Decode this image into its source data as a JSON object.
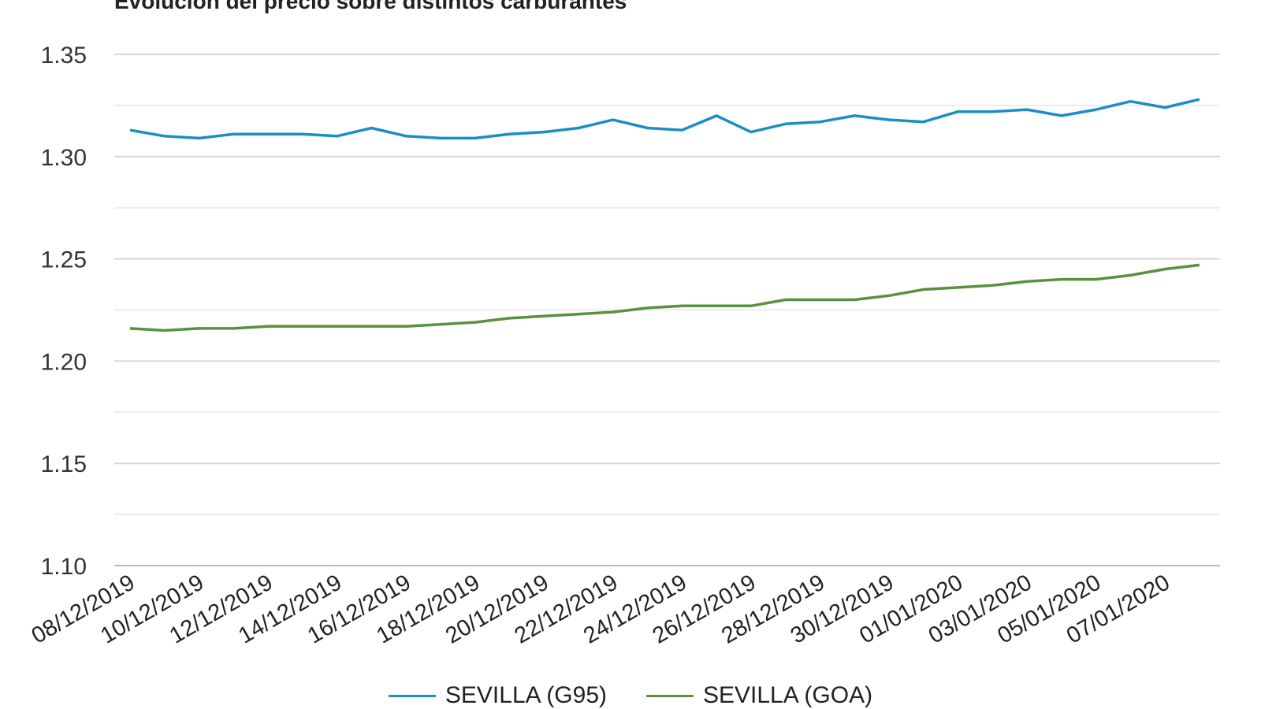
{
  "chart_data": {
    "type": "line",
    "title": "Evolución del precio sobre distintos carburantes",
    "xlabel": "",
    "ylabel": "",
    "ylim": [
      1.1,
      1.35
    ],
    "yticks": [
      "1.10",
      "1.15",
      "1.20",
      "1.25",
      "1.30",
      "1.35"
    ],
    "grid": true,
    "legend": "bottom",
    "x": [
      "08/12/2019",
      "09/12/2019",
      "10/12/2019",
      "11/12/2019",
      "12/12/2019",
      "13/12/2019",
      "14/12/2019",
      "15/12/2019",
      "16/12/2019",
      "17/12/2019",
      "18/12/2019",
      "19/12/2019",
      "20/12/2019",
      "21/12/2019",
      "22/12/2019",
      "23/12/2019",
      "24/12/2019",
      "25/12/2019",
      "26/12/2019",
      "27/12/2019",
      "28/12/2019",
      "29/12/2019",
      "30/12/2019",
      "31/12/2019",
      "01/01/2020",
      "02/01/2020",
      "03/01/2020",
      "04/01/2020",
      "05/01/2020",
      "06/01/2020",
      "07/01/2020",
      "08/01/2020"
    ],
    "xticks": [
      "08/12/2019",
      "10/12/2019",
      "12/12/2019",
      "14/12/2019",
      "16/12/2019",
      "18/12/2019",
      "20/12/2019",
      "22/12/2019",
      "24/12/2019",
      "26/12/2019",
      "28/12/2019",
      "30/12/2019",
      "01/01/2020",
      "03/01/2020",
      "05/01/2020",
      "07/01/2020"
    ],
    "series": [
      {
        "name": "SEVILLA (G95)",
        "color": "#1a8fc4",
        "values": [
          1.313,
          1.31,
          1.309,
          1.311,
          1.311,
          1.311,
          1.31,
          1.314,
          1.31,
          1.309,
          1.309,
          1.311,
          1.312,
          1.314,
          1.318,
          1.314,
          1.313,
          1.32,
          1.312,
          1.316,
          1.317,
          1.32,
          1.318,
          1.317,
          1.322,
          1.322,
          1.323,
          1.32,
          1.323,
          1.327,
          1.324,
          1.328
        ]
      },
      {
        "name": "SEVILLA (GOA)",
        "color": "#5a913c",
        "values": [
          1.216,
          1.215,
          1.216,
          1.216,
          1.217,
          1.217,
          1.217,
          1.217,
          1.217,
          1.218,
          1.219,
          1.221,
          1.222,
          1.223,
          1.224,
          1.226,
          1.227,
          1.227,
          1.227,
          1.23,
          1.23,
          1.23,
          1.232,
          1.235,
          1.236,
          1.237,
          1.239,
          1.24,
          1.24,
          1.242,
          1.245,
          1.247
        ]
      }
    ]
  }
}
